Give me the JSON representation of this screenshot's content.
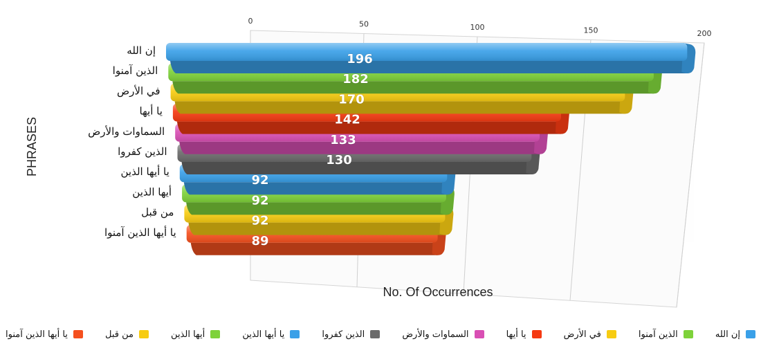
{
  "chart_data": {
    "type": "bar",
    "orientation": "horizontal",
    "xlabel": "No. Of Occurrences",
    "ylabel": "PHRASES",
    "xlim": [
      0,
      200
    ],
    "xticks": [
      "0",
      "50",
      "100",
      "150",
      "200"
    ],
    "grid": true,
    "legend_position": "bottom",
    "categories": [
      "إن الله",
      "الذين آمنوا",
      "في الأرض",
      "يا أيها",
      "السماوات والأرض",
      "الذين كفروا",
      "يا أيها الذين",
      "أيها الذين",
      "من قبل",
      "يا أيها الذين آمنوا"
    ],
    "values": [
      196,
      182,
      170,
      142,
      133,
      130,
      92,
      92,
      92,
      89
    ],
    "value_labels": [
      "196",
      "182",
      "170",
      "142",
      "133",
      "130",
      "92",
      "92",
      "92",
      "89"
    ],
    "colors": [
      "#3aa0e8",
      "#7ed23a",
      "#f7cc12",
      "#f53a12",
      "#d94fb4",
      "#6b6b6b",
      "#3aa0e8",
      "#7ed23a",
      "#f7cc12",
      "#f5501e"
    ]
  }
}
